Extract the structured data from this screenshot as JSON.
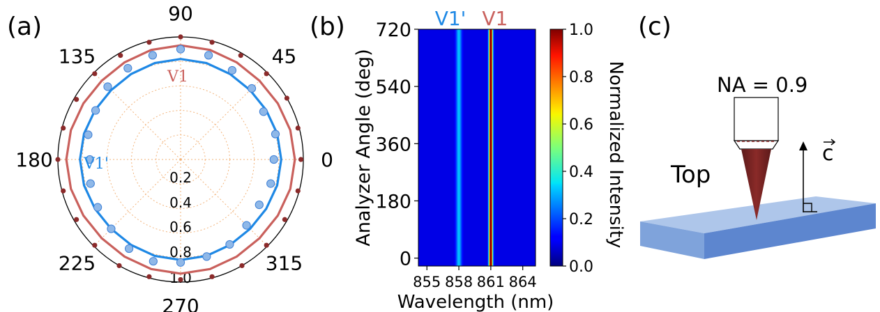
{
  "panel_labels": {
    "a": "(a)",
    "b": "(b)",
    "c": "(c)"
  },
  "chart_data": [
    {
      "type": "polar-scatter",
      "angle_ticks": [
        "0",
        "45",
        "90",
        "135",
        "180",
        "225",
        "270",
        "315"
      ],
      "angle_tick_values": [
        0,
        45,
        90,
        135,
        180,
        225,
        270,
        315
      ],
      "radial_ticks": [
        "0.2",
        "0.4",
        "0.6",
        "0.8",
        "1.0"
      ],
      "radial_tick_values": [
        0.2,
        0.4,
        0.6,
        0.8,
        1.0
      ],
      "radial_direction": "inverted",
      "series": [
        {
          "name": "V1",
          "color": "#c9605c",
          "marker_color": "#8b2a2a",
          "angles": [
            0,
            15,
            30,
            45,
            60,
            75,
            90,
            105,
            120,
            135,
            150,
            165,
            180,
            195,
            210,
            225,
            240,
            255,
            270,
            285,
            300,
            315,
            330,
            345
          ],
          "r": [
            0.98,
            0.99,
            1.0,
            0.99,
            0.98,
            0.99,
            1.0,
            0.99,
            0.98,
            0.99,
            0.98,
            0.99,
            1.0,
            0.99,
            0.98,
            0.99,
            1.0,
            0.99,
            0.98,
            0.99,
            1.0,
            0.99,
            0.98,
            0.99
          ],
          "fit_r": 0.92
        },
        {
          "name": "V1'",
          "color": "#1e88e5",
          "marker_color": "#8fb8e8",
          "angles": [
            0,
            15,
            30,
            45,
            60,
            75,
            90,
            105,
            120,
            135,
            150,
            165,
            180,
            195,
            210,
            225,
            240,
            255,
            270,
            285,
            300,
            315,
            330,
            345
          ],
          "r": [
            0.76,
            0.8,
            0.78,
            0.82,
            0.84,
            0.88,
            0.9,
            0.88,
            0.86,
            0.84,
            0.8,
            0.78,
            0.74,
            0.76,
            0.78,
            0.8,
            0.84,
            0.86,
            0.84,
            0.82,
            0.8,
            0.76,
            0.74,
            0.76
          ],
          "fit_r": 0.81
        }
      ]
    },
    {
      "type": "heatmap",
      "title_labels": [
        "V1'",
        "V1"
      ],
      "title_colors": [
        "#1e88e5",
        "#c9605c"
      ],
      "xlabel": "Wavelength (nm)",
      "ylabel": "Analyzer Angle (deg)",
      "x_ticks": [
        "855",
        "858",
        "861",
        "864"
      ],
      "x_tick_values": [
        855,
        858,
        861,
        864
      ],
      "y_ticks": [
        "0",
        "180",
        "360",
        "540",
        "720"
      ],
      "y_tick_values": [
        0,
        180,
        360,
        540,
        720
      ],
      "xlim": [
        854.2,
        865.2
      ],
      "ylim": [
        -25,
        720
      ],
      "peaks": [
        {
          "name": "V1'",
          "center": 858.0,
          "width": 0.18,
          "amplitude": 0.22
        },
        {
          "name": "V1",
          "center": 861.0,
          "width": 0.12,
          "amplitude": 1.0
        }
      ],
      "colorbar": {
        "label": "Normalized Intensity",
        "ticks": [
          "0.0",
          "0.2",
          "0.4",
          "0.6",
          "0.8",
          "1.0"
        ],
        "tick_values": [
          0.0,
          0.2,
          0.4,
          0.6,
          0.8,
          1.0
        ],
        "colormap": "jet"
      }
    }
  ],
  "schematic": {
    "na_label": "NA = 0.9",
    "top_label": "Top",
    "axis_label": "c"
  }
}
